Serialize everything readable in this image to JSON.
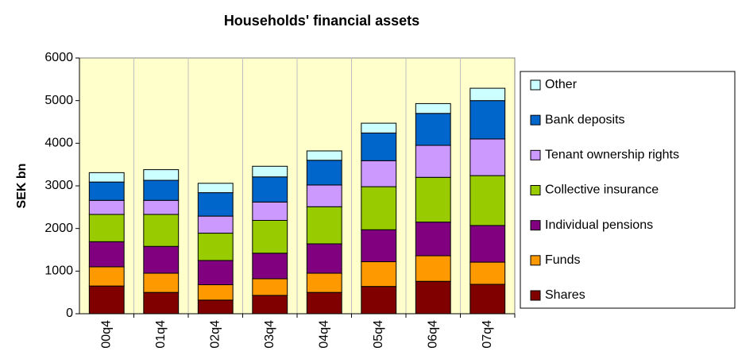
{
  "chart_data": {
    "type": "stacked_bar",
    "title": "Households' financial assets",
    "y_label": "SEK bn",
    "categories": [
      "00q4",
      "01q4",
      "02q4",
      "03q4",
      "04q4",
      "05q4",
      "06q4",
      "07q4"
    ],
    "series": [
      {
        "name": "Shares",
        "color": "#800000",
        "values": [
          650,
          500,
          320,
          430,
          500,
          640,
          760,
          690
        ]
      },
      {
        "name": "Funds",
        "color": "#ff9900",
        "values": [
          450,
          450,
          360,
          390,
          450,
          580,
          600,
          520
        ]
      },
      {
        "name": "Individual pensions",
        "color": "#800080",
        "values": [
          590,
          630,
          570,
          600,
          690,
          750,
          790,
          860
        ]
      },
      {
        "name": "Collective insurance",
        "color": "#99cc00",
        "values": [
          640,
          750,
          640,
          770,
          870,
          1010,
          1050,
          1170
        ]
      },
      {
        "name": "Tenant ownership rights",
        "color": "#cc99ff",
        "values": [
          330,
          330,
          400,
          430,
          510,
          610,
          750,
          860
        ]
      },
      {
        "name": "Bank deposits",
        "color": "#0066cc",
        "values": [
          430,
          470,
          550,
          590,
          580,
          650,
          750,
          900
        ]
      },
      {
        "name": "Other",
        "color": "#ccffff",
        "values": [
          220,
          250,
          220,
          250,
          220,
          230,
          230,
          290
        ]
      }
    ],
    "ylim": [
      0,
      6000
    ],
    "yticks": [
      0,
      1000,
      2000,
      3000,
      4000,
      5000,
      6000
    ],
    "legend": "right"
  }
}
